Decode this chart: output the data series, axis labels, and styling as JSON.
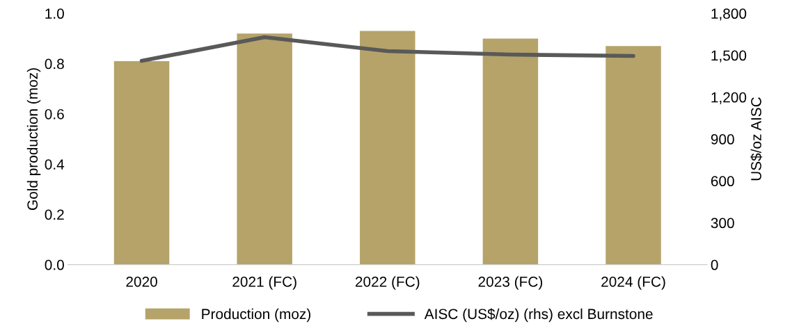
{
  "chart_data": {
    "type": "bar",
    "ylabel": "Gold production (moz)",
    "y2label": "US$/oz AISC",
    "categories": [
      "2020",
      "2021 (FC)",
      "2022 (FC)",
      "2023 (FC)",
      "2024 (FC)"
    ],
    "series": [
      {
        "name": "Production (moz)",
        "color": "#b5a36a",
        "values": [
          0.81,
          0.92,
          0.93,
          0.9,
          0.87
        ]
      },
      {
        "name": "AISC (US$/oz) (rhs) excl Burnstone",
        "type": "line",
        "axis": "y2",
        "color": "#595959",
        "values": [
          1460,
          1630,
          1530,
          1505,
          1495
        ]
      }
    ],
    "ylim": [
      0,
      1.0
    ],
    "yticks": [
      {
        "value": 0,
        "label": "0.0"
      },
      0.2,
      0.4,
      0.6,
      0.8,
      {
        "value": 1.0,
        "label": "1.0"
      }
    ],
    "y2lim": [
      0,
      1800
    ],
    "y2ticks": [
      0,
      300,
      600,
      900,
      {
        "value": 1200,
        "label": "1,200"
      },
      {
        "value": 1500,
        "label": "1,500"
      },
      {
        "value": 1800,
        "label": "1,800"
      }
    ],
    "legend": "bottom",
    "grid": false,
    "marker": "none",
    "line_style": "solid"
  }
}
